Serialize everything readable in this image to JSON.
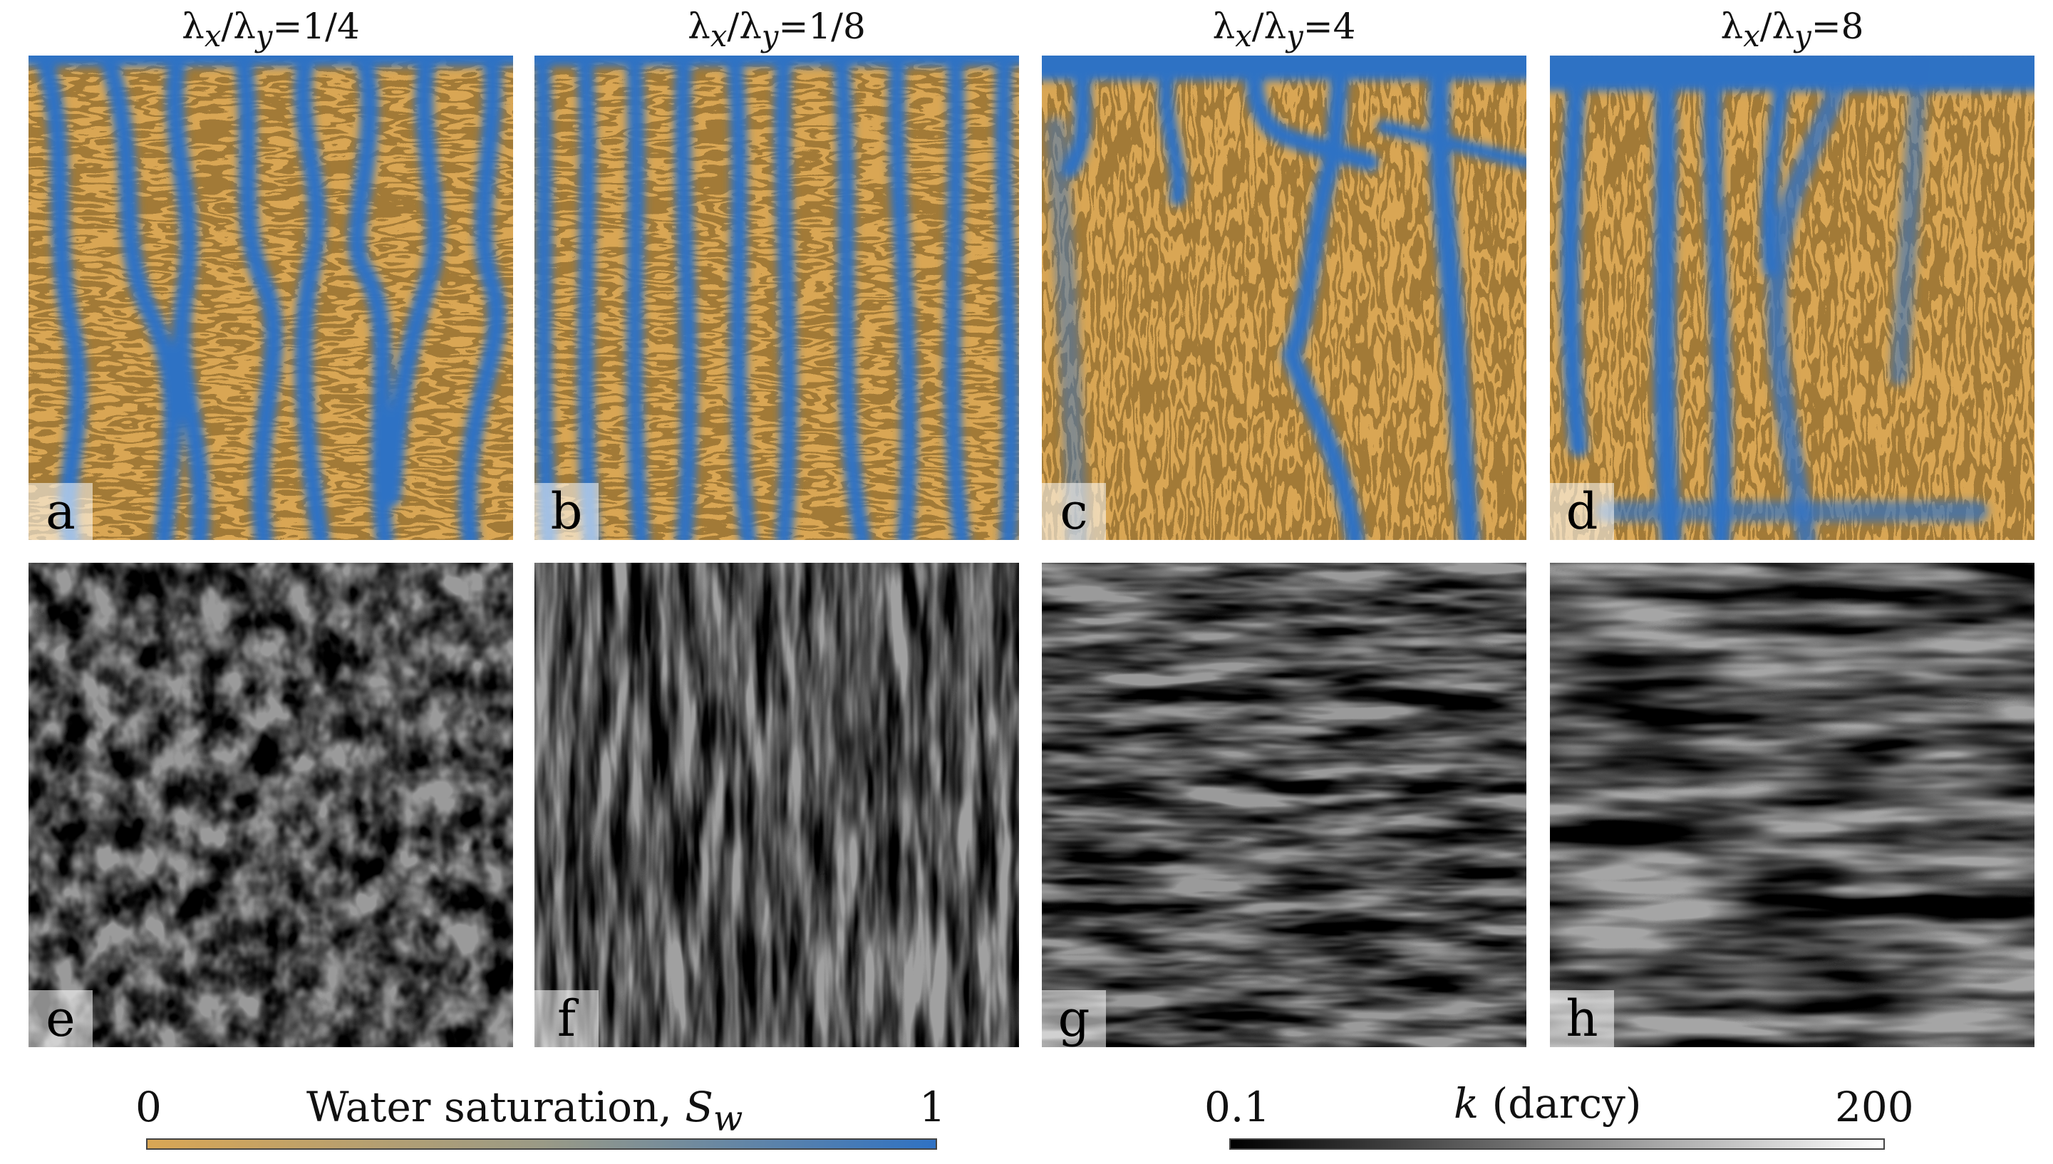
{
  "columns": [
    {
      "title_pre": "λ",
      "sub1": "x",
      "mid": "/λ",
      "sub2": "y",
      "ratio": "=1/4"
    },
    {
      "title_pre": "λ",
      "sub1": "x",
      "mid": "/λ",
      "sub2": "y",
      "ratio": "=1/8"
    },
    {
      "title_pre": "λ",
      "sub1": "x",
      "mid": "/λ",
      "sub2": "y",
      "ratio": "=4"
    },
    {
      "title_pre": "λ",
      "sub1": "x",
      "mid": "/λ",
      "sub2": "y",
      "ratio": "=8"
    }
  ],
  "panels": {
    "a": "a",
    "b": "b",
    "c": "c",
    "d": "d",
    "e": "e",
    "f": "f",
    "g": "g",
    "h": "h"
  },
  "colorbars": {
    "water": {
      "min": "0",
      "max": "1",
      "label": "Water saturation,",
      "symbol": "S",
      "symbol_sub": "w",
      "color_low": "#d9a654",
      "color_high": "#2f72c4"
    },
    "perm": {
      "min": "0.1",
      "max": "200",
      "label_symbol": "k",
      "label_unit": " (darcy)",
      "color_low": "#000000",
      "color_high": "#ffffff"
    }
  },
  "colors": {
    "oil": "#d9a654",
    "water": "#2f72c4"
  }
}
